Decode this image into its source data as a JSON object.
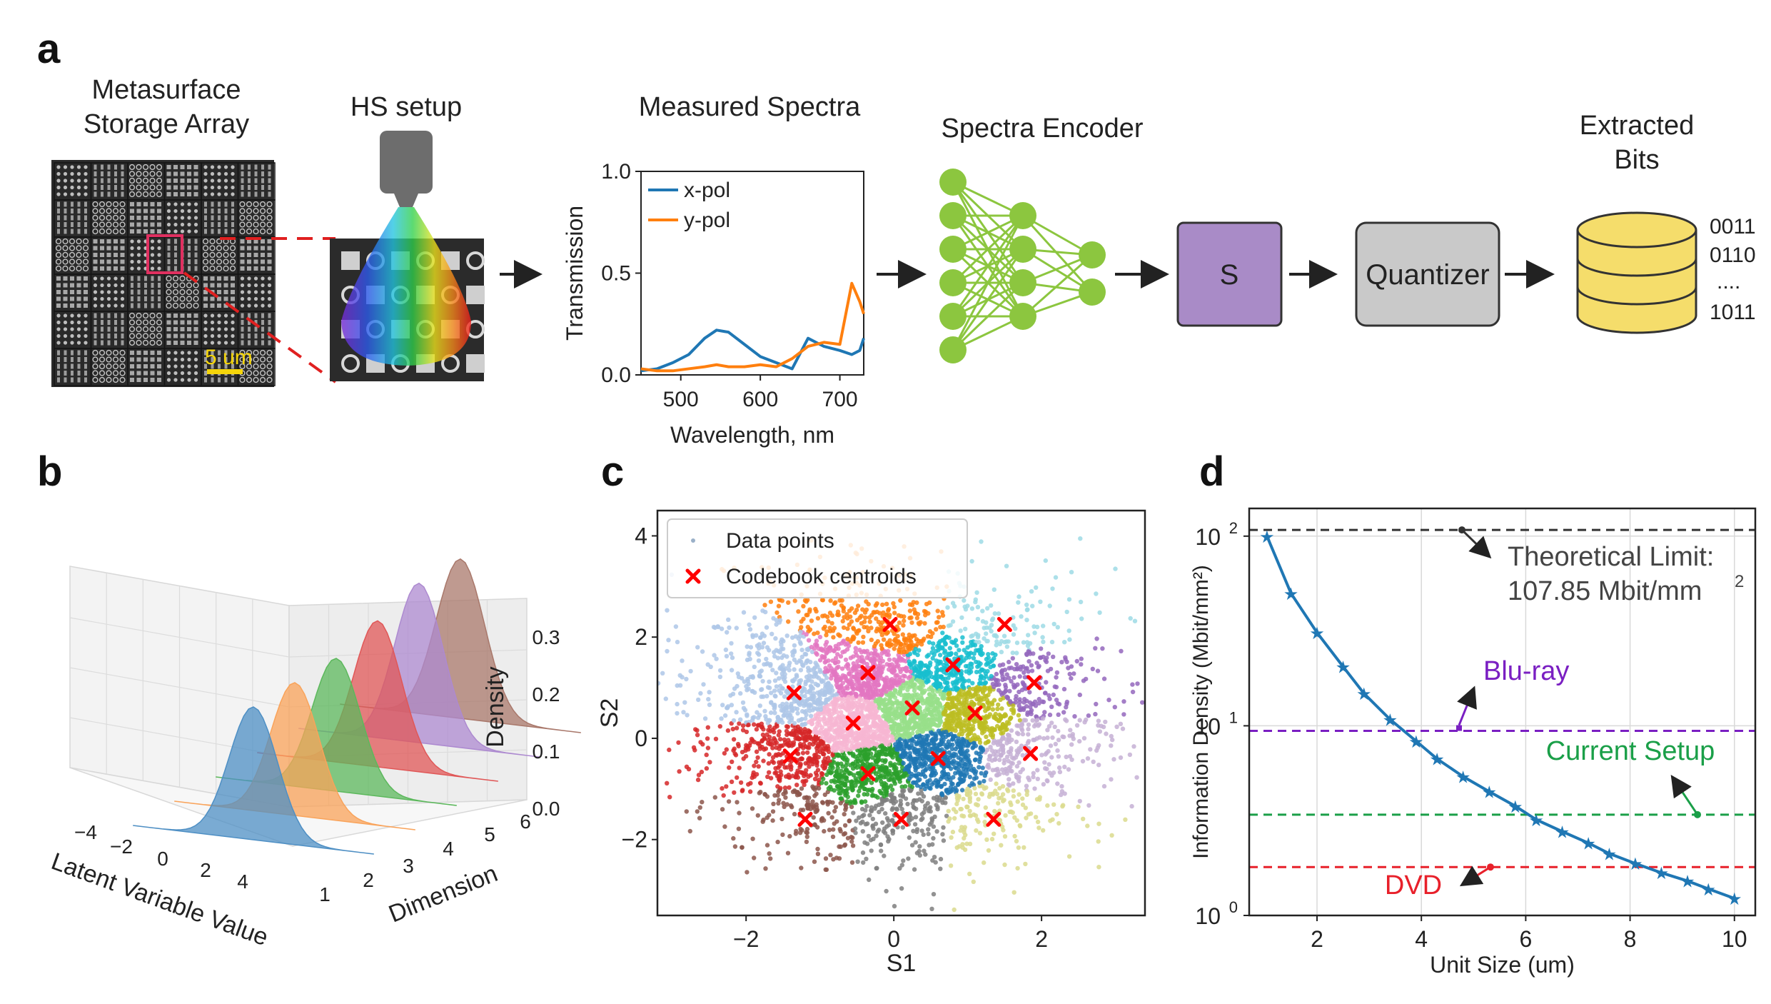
{
  "panel_letters": [
    "a",
    "b",
    "c",
    "d"
  ],
  "panel_a": {
    "metasurface_title_1": "Metasurface",
    "metasurface_title_2": "Storage Array",
    "scale_bar": "5 um",
    "hs_title": "HS setup",
    "spectra_title": "Measured Spectra",
    "encoder_title": "Spectra Encoder",
    "s_box": "S",
    "quantizer_box": "Quantizer",
    "bits_title_1": "Extracted",
    "bits_title_2": "Bits",
    "bits": [
      "0011",
      "0110",
      "....",
      "1011"
    ],
    "colors": {
      "s_box": "#a98bc7",
      "quantizer_box": "#c9c9c9",
      "nn_nodes": "#8cc63f",
      "database": "#f5dd6b"
    }
  },
  "chart_data": [
    {
      "type": "line",
      "panel": "a",
      "title": "Measured Spectra",
      "xlabel": "Wavelength, nm",
      "ylabel": "Transmission",
      "xlim": [
        450,
        730
      ],
      "ylim": [
        0,
        1.0
      ],
      "xticks": [
        "500",
        "600",
        "700"
      ],
      "yticks": [
        "0.0",
        "0.5",
        "1.0"
      ],
      "legend_position": "top-left",
      "x": [
        450,
        470,
        490,
        510,
        530,
        545,
        560,
        580,
        600,
        620,
        640,
        660,
        680,
        700,
        715,
        725,
        730
      ],
      "series": [
        {
          "name": "x-pol",
          "color": "#1f77b4",
          "values": [
            0.02,
            0.03,
            0.06,
            0.1,
            0.18,
            0.22,
            0.21,
            0.15,
            0.09,
            0.06,
            0.03,
            0.18,
            0.14,
            0.12,
            0.1,
            0.12,
            0.18
          ]
        },
        {
          "name": "y-pol",
          "color": "#ff7f0e",
          "values": [
            0.03,
            0.02,
            0.02,
            0.03,
            0.04,
            0.05,
            0.04,
            0.04,
            0.05,
            0.04,
            0.08,
            0.14,
            0.16,
            0.15,
            0.45,
            0.36,
            0.3
          ]
        }
      ]
    },
    {
      "type": "area",
      "panel": "b",
      "xlabel": "Latent Variable Value",
      "ylabel": "Dimension",
      "zlabel": "Density",
      "xticks": [
        "−4",
        "−2",
        "0",
        "2",
        "4"
      ],
      "yticks": [
        "1",
        "2",
        "3",
        "4",
        "5",
        "6"
      ],
      "zticks": [
        "0.0",
        "0.1",
        "0.2",
        "0.3"
      ],
      "dimensions": [
        1,
        2,
        3,
        4,
        5,
        6
      ],
      "colors": [
        "#4e8fc4",
        "#f9a35a",
        "#5cb85c",
        "#e05757",
        "#ad8ad0",
        "#a9786b"
      ],
      "peak_density": [
        0.3,
        0.3,
        0.3,
        0.33,
        0.36,
        0.36
      ]
    },
    {
      "type": "scatter",
      "panel": "c",
      "xlabel": "S1",
      "ylabel": "S2",
      "xlim": [
        -3.2,
        3.4
      ],
      "ylim": [
        -3.5,
        4.5
      ],
      "xticks": [
        "−2",
        "0",
        "2"
      ],
      "yticks": [
        "−2",
        "0",
        "2",
        "4"
      ],
      "legend_position": "top-left",
      "legend": [
        "Data points",
        "Codebook centroids"
      ],
      "centroid_color": "#ff0000",
      "centroids": [
        {
          "x": -0.05,
          "y": 2.25,
          "color": "#ff7f0e"
        },
        {
          "x": 1.5,
          "y": 2.25,
          "color": "#9edae5"
        },
        {
          "x": -1.35,
          "y": 0.9,
          "color": "#aec7e8"
        },
        {
          "x": -0.35,
          "y": 1.3,
          "color": "#e377c2"
        },
        {
          "x": 0.8,
          "y": 1.45,
          "color": "#17becf"
        },
        {
          "x": 1.9,
          "y": 1.1,
          "color": "#9467bd"
        },
        {
          "x": -0.55,
          "y": 0.3,
          "color": "#f7b6d2"
        },
        {
          "x": 0.25,
          "y": 0.6,
          "color": "#98df8a"
        },
        {
          "x": 1.1,
          "y": 0.5,
          "color": "#bcbd22"
        },
        {
          "x": -1.4,
          "y": -0.35,
          "color": "#d62728"
        },
        {
          "x": -0.35,
          "y": -0.7,
          "color": "#2ca02c"
        },
        {
          "x": 0.6,
          "y": -0.4,
          "color": "#1f77b4"
        },
        {
          "x": 1.85,
          "y": -0.3,
          "color": "#c5b0d5"
        },
        {
          "x": -1.2,
          "y": -1.6,
          "color": "#8c564b"
        },
        {
          "x": 0.1,
          "y": -1.6,
          "color": "#7f7f7f"
        },
        {
          "x": 1.35,
          "y": -1.6,
          "color": "#dbdb8d"
        }
      ]
    },
    {
      "type": "line",
      "panel": "d",
      "xlabel": "Unit Size (um)",
      "ylabel": "Information Density (Mbit/mm²)",
      "yscale": "log",
      "xlim": [
        0.7,
        10.4
      ],
      "ylim": [
        1.0,
        140
      ],
      "xticks": [
        "2",
        "4",
        "6",
        "8",
        "10"
      ],
      "grid": true,
      "x": [
        1.04,
        1.5,
        2.0,
        2.5,
        2.9,
        3.4,
        3.9,
        4.3,
        4.8,
        5.3,
        5.8,
        6.2,
        6.7,
        7.2,
        7.6,
        8.1,
        8.6,
        9.1,
        9.5,
        10.0
      ],
      "series": [
        {
          "color": "#1f77b4",
          "marker": "star",
          "values": [
            100,
            50,
            31,
            20.5,
            14.8,
            10.8,
            8.3,
            6.7,
            5.4,
            4.5,
            3.77,
            3.2,
            2.77,
            2.41,
            2.12,
            1.88,
            1.68,
            1.52,
            1.38,
            1.23
          ]
        }
      ],
      "reference_lines": [
        {
          "label_1": "Theoretical Limit:",
          "label_2": "107.85 Mbit/mm",
          "label_sup": "2",
          "value": 107.85,
          "color": "#333333"
        },
        {
          "label": "Blu-ray",
          "value": 9.4,
          "color": "#7a1fc2"
        },
        {
          "label": "Current Setup",
          "value": 3.4,
          "color": "#1a9f48"
        },
        {
          "label": "DVD",
          "value": 1.8,
          "color": "#e8202a"
        }
      ]
    }
  ]
}
